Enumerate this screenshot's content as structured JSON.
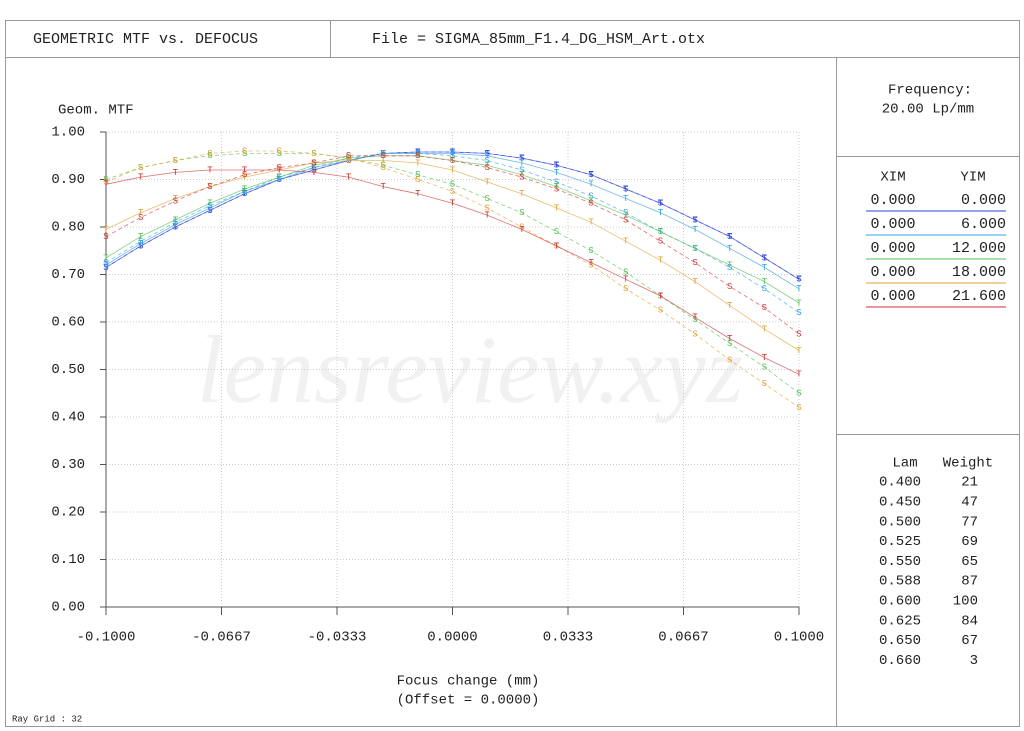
{
  "header": {
    "title": "GEOMETRIC MTF vs. DEFOCUS",
    "file": "File = SIGMA_85mm_F1.4_DG_HSM_Art.otx"
  },
  "chart_data": {
    "type": "line",
    "ylabel": "Geom. MTF",
    "xlabel": "Focus change (mm)",
    "xnote": "(Offset = 0.0000)",
    "watermark": "lensreview.xyz",
    "x": [
      -0.1,
      -0.09,
      -0.08,
      -0.07,
      -0.06,
      -0.05,
      -0.04,
      -0.03,
      -0.02,
      -0.01,
      0,
      0.01,
      0.02,
      0.03,
      0.04,
      0.05,
      0.06,
      0.07,
      0.08,
      0.09,
      0.1
    ],
    "xlim": [
      -0.1,
      0.1
    ],
    "ylim": [
      0,
      1
    ],
    "xticks": [
      {
        "value": -0.1,
        "label": "-0.1000"
      },
      {
        "value": -0.06667,
        "label": "-0.0667"
      },
      {
        "value": -0.03333,
        "label": "-0.0333"
      },
      {
        "value": 0,
        "label": "0.0000"
      },
      {
        "value": 0.03333,
        "label": "0.0333"
      },
      {
        "value": 0.06667,
        "label": "0.0667"
      },
      {
        "value": 0.1,
        "label": "0.1000"
      }
    ],
    "yticks": [
      {
        "value": 0,
        "label": "0.00"
      },
      {
        "value": 0.1,
        "label": "0.10"
      },
      {
        "value": 0.2,
        "label": "0.20"
      },
      {
        "value": 0.3,
        "label": "0.30"
      },
      {
        "value": 0.4,
        "label": "0.40"
      },
      {
        "value": 0.5,
        "label": "0.50"
      },
      {
        "value": 0.6,
        "label": "0.60"
      },
      {
        "value": 0.7,
        "label": "0.70"
      },
      {
        "value": 0.8,
        "label": "0.80"
      },
      {
        "value": 0.9,
        "label": "0.90"
      },
      {
        "value": 1,
        "label": "1.00"
      }
    ],
    "grid": true,
    "series": [
      {
        "marker": "T",
        "color": "#2a40e0",
        "values": [
          0.715,
          0.76,
          0.8,
          0.835,
          0.87,
          0.9,
          0.92,
          0.94,
          0.955,
          0.958,
          0.958,
          0.955,
          0.945,
          0.93,
          0.91,
          0.88,
          0.85,
          0.815,
          0.78,
          0.735,
          0.69
        ]
      },
      {
        "marker": "S",
        "color": "#2a40e0",
        "values": [
          0.715,
          0.76,
          0.8,
          0.835,
          0.87,
          0.9,
          0.92,
          0.94,
          0.955,
          0.958,
          0.958,
          0.955,
          0.945,
          0.93,
          0.91,
          0.88,
          0.85,
          0.815,
          0.78,
          0.735,
          0.69
        ]
      },
      {
        "marker": "T",
        "color": "#30a0e0",
        "values": [
          0.72,
          0.765,
          0.805,
          0.84,
          0.875,
          0.9,
          0.925,
          0.94,
          0.955,
          0.955,
          0.955,
          0.95,
          0.935,
          0.915,
          0.89,
          0.86,
          0.83,
          0.795,
          0.755,
          0.715,
          0.67
        ]
      },
      {
        "marker": "S",
        "color": "#30a0e0",
        "values": [
          0.725,
          0.77,
          0.81,
          0.845,
          0.875,
          0.905,
          0.925,
          0.945,
          0.955,
          0.955,
          0.95,
          0.94,
          0.92,
          0.895,
          0.865,
          0.83,
          0.79,
          0.755,
          0.715,
          0.67,
          0.62
        ]
      },
      {
        "marker": "T",
        "color": "#50c050",
        "values": [
          0.735,
          0.78,
          0.815,
          0.85,
          0.88,
          0.905,
          0.93,
          0.945,
          0.95,
          0.95,
          0.94,
          0.93,
          0.91,
          0.885,
          0.855,
          0.825,
          0.79,
          0.755,
          0.72,
          0.685,
          0.64
        ]
      },
      {
        "marker": "S",
        "color": "#50c050",
        "values": [
          0.9,
          0.925,
          0.94,
          0.95,
          0.955,
          0.955,
          0.955,
          0.945,
          0.93,
          0.91,
          0.89,
          0.86,
          0.83,
          0.79,
          0.75,
          0.705,
          0.655,
          0.605,
          0.555,
          0.505,
          0.45
        ]
      },
      {
        "marker": "T",
        "color": "#e0a030",
        "values": [
          0.795,
          0.83,
          0.86,
          0.885,
          0.905,
          0.92,
          0.935,
          0.94,
          0.94,
          0.935,
          0.92,
          0.895,
          0.87,
          0.84,
          0.81,
          0.77,
          0.73,
          0.685,
          0.635,
          0.585,
          0.54
        ]
      },
      {
        "marker": "S",
        "color": "#e0a030",
        "values": [
          0.895,
          0.925,
          0.94,
          0.955,
          0.96,
          0.96,
          0.955,
          0.945,
          0.925,
          0.9,
          0.875,
          0.84,
          0.8,
          0.76,
          0.72,
          0.67,
          0.625,
          0.575,
          0.52,
          0.47,
          0.42
        ]
      },
      {
        "marker": "T",
        "color": "#d03030",
        "values": [
          0.89,
          0.905,
          0.915,
          0.92,
          0.92,
          0.92,
          0.915,
          0.905,
          0.885,
          0.87,
          0.85,
          0.825,
          0.795,
          0.76,
          0.725,
          0.69,
          0.655,
          0.61,
          0.565,
          0.525,
          0.49
        ]
      },
      {
        "marker": "S",
        "color": "#d03030",
        "values": [
          0.78,
          0.82,
          0.855,
          0.885,
          0.91,
          0.925,
          0.935,
          0.95,
          0.95,
          0.95,
          0.94,
          0.925,
          0.905,
          0.88,
          0.85,
          0.815,
          0.77,
          0.725,
          0.675,
          0.63,
          0.575
        ]
      }
    ]
  },
  "panel": {
    "frequency": {
      "label": "Frequency:",
      "value": "20.00  Lp/mm"
    },
    "fields": {
      "headers": [
        "XIM",
        "YIM"
      ],
      "rows": [
        {
          "xim": "0.000",
          "yim": "0.000",
          "color": "#2a40e0"
        },
        {
          "xim": "0.000",
          "yim": "6.000",
          "color": "#30a0e0"
        },
        {
          "xim": "0.000",
          "yim": "12.000",
          "color": "#50c050"
        },
        {
          "xim": "0.000",
          "yim": "18.000",
          "color": "#e0a030"
        },
        {
          "xim": "0.000",
          "yim": "21.600",
          "color": "#d03030"
        }
      ]
    },
    "wavelengths": {
      "headers": [
        "Lam",
        "Weight"
      ],
      "rows": [
        [
          "0.400",
          "21"
        ],
        [
          "0.450",
          "47"
        ],
        [
          "0.500",
          "77"
        ],
        [
          "0.525",
          "69"
        ],
        [
          "0.550",
          "65"
        ],
        [
          "0.588",
          "87"
        ],
        [
          "0.600",
          "100"
        ],
        [
          "0.625",
          "84"
        ],
        [
          "0.650",
          "67"
        ],
        [
          "0.660",
          "3"
        ]
      ]
    }
  },
  "footer": "Ray Grid : 32"
}
